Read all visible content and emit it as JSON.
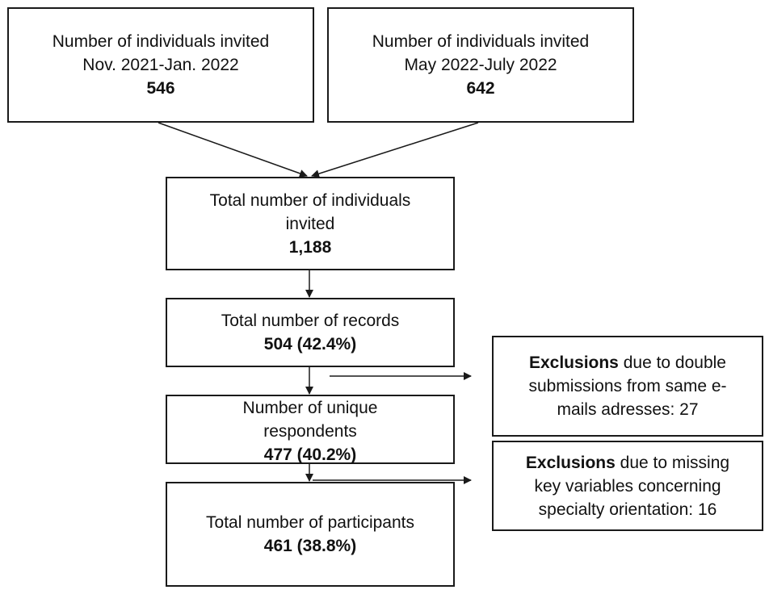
{
  "boxes": {
    "invited_period_1": {
      "lines": [
        "Number of individuals invited",
        "Nov. 2021-Jan. 2022"
      ],
      "count": "546"
    },
    "invited_period_2": {
      "lines": [
        "Number of individuals invited",
        "May 2022-July 2022"
      ],
      "count": "642"
    },
    "total_invited": {
      "lines": [
        "Total number of individuals",
        "invited"
      ],
      "count": "1,188"
    },
    "total_records": {
      "lines": [
        "Total number of records"
      ],
      "count": "504 (42.4%)"
    },
    "unique_respondents": {
      "lines": [
        "Number of unique",
        "respondents"
      ],
      "count": "477 (40.2%)"
    },
    "total_participants": {
      "lines": [
        "Total number of participants"
      ],
      "count": "461 (38.8%)"
    },
    "exclusion_double": {
      "bold": "Exclusions",
      "lines": [
        " due to double",
        "submissions from same e-",
        "mails adresses: 27"
      ]
    },
    "exclusion_missing": {
      "bold": "Exclusions",
      "lines": [
        " due to missing",
        "key variables concerning",
        "specialty orientation: 16"
      ]
    }
  },
  "colors": {
    "border": "#1a1a1a",
    "arrow": "#1a1a1a",
    "text": "#111111",
    "background": "#ffffff"
  }
}
